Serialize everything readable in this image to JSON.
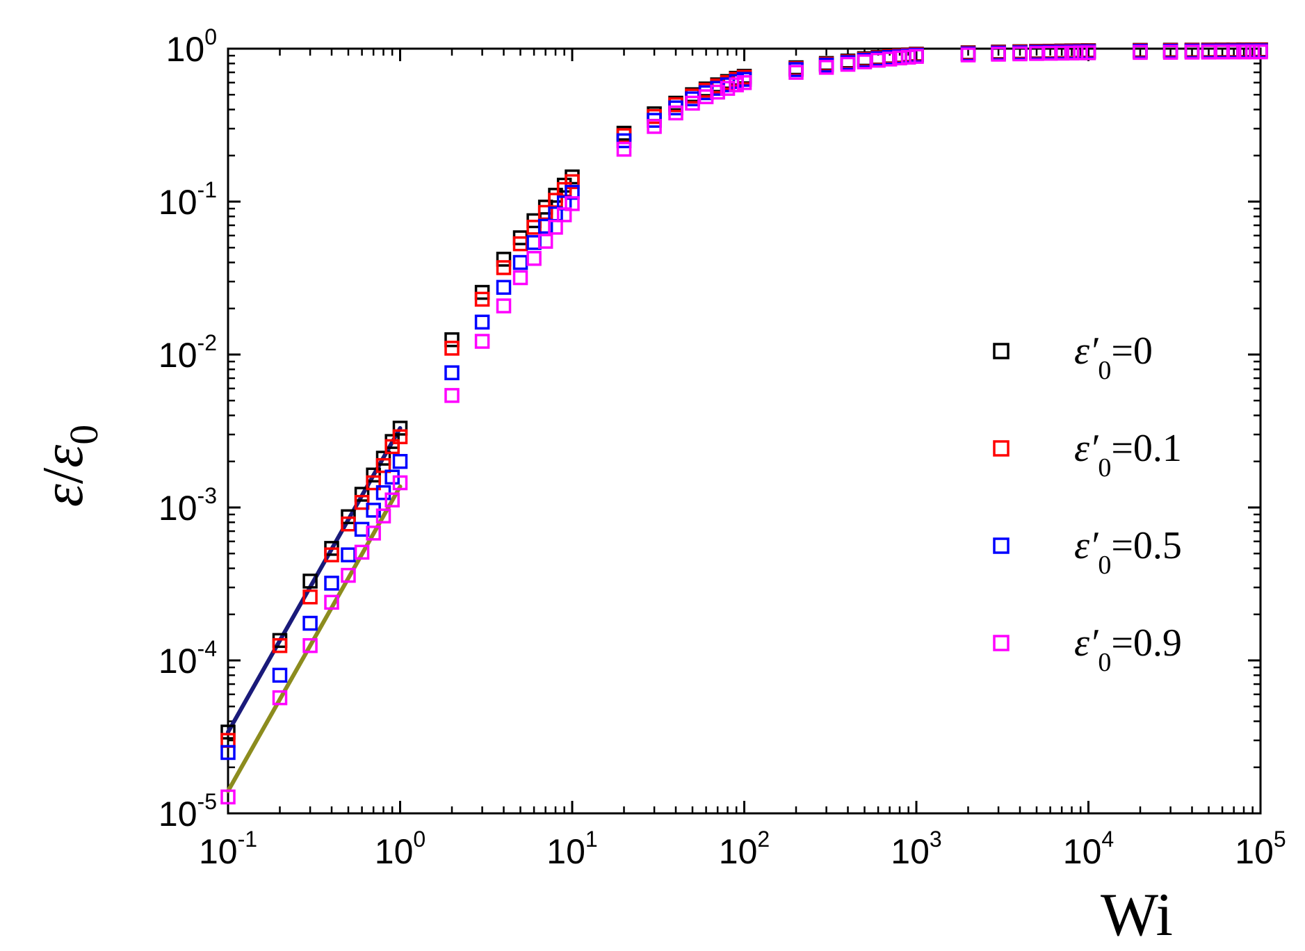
{
  "chart_data": {
    "type": "scatter",
    "title": "",
    "xlabel": "Wi",
    "ylabel": {
      "numerator": "ε",
      "slash": "/",
      "denominator": "ε",
      "denominator_subscript": "0"
    },
    "xscale": "log",
    "yscale": "log",
    "xlim": [
      0.1,
      100000
    ],
    "ylim": [
      1e-05,
      1
    ],
    "x_ticks": [
      {
        "base": "10",
        "exp": "-1",
        "value": 0.1
      },
      {
        "base": "10",
        "exp": "0",
        "value": 1
      },
      {
        "base": "10",
        "exp": "1",
        "value": 10
      },
      {
        "base": "10",
        "exp": "2",
        "value": 100
      },
      {
        "base": "10",
        "exp": "3",
        "value": 1000
      },
      {
        "base": "10",
        "exp": "4",
        "value": 10000
      },
      {
        "base": "10",
        "exp": "5",
        "value": 100000
      }
    ],
    "y_ticks": [
      {
        "base": "10",
        "exp": "-5",
        "value": 1e-05
      },
      {
        "base": "10",
        "exp": "-4",
        "value": 0.0001
      },
      {
        "base": "10",
        "exp": "-3",
        "value": 0.001
      },
      {
        "base": "10",
        "exp": "-2",
        "value": 0.01
      },
      {
        "base": "10",
        "exp": "-1",
        "value": 0.1
      },
      {
        "base": "10",
        "exp": "0",
        "value": 1
      }
    ],
    "legend_position": "right",
    "x": [
      0.1,
      0.2,
      0.3,
      0.4,
      0.5,
      0.6,
      0.7,
      0.8,
      0.9,
      1,
      2,
      3,
      4,
      5,
      6,
      7,
      8,
      9,
      10,
      20,
      30,
      40,
      50,
      60,
      70,
      80,
      90,
      100,
      200,
      300,
      400,
      500,
      600,
      700,
      800,
      900,
      1000,
      2000,
      3000,
      4000,
      5000,
      6000,
      7000,
      8000,
      9000,
      10000,
      20000,
      30000,
      40000,
      50000,
      60000,
      70000,
      80000,
      90000,
      100000
    ],
    "series": [
      {
        "name_symbol": "ε′",
        "name_sub": "0",
        "name_value": "=0",
        "color": "#000000",
        "values": [
          3.4e-05,
          0.000135,
          0.00033,
          0.00054,
          0.00087,
          0.00122,
          0.00163,
          0.0021,
          0.0027,
          0.0033,
          0.0125,
          0.0255,
          0.042,
          0.058,
          0.075,
          0.092,
          0.11,
          0.128,
          0.145,
          0.28,
          0.375,
          0.44,
          0.5,
          0.545,
          0.58,
          0.61,
          0.64,
          0.66,
          0.75,
          0.8,
          0.83,
          0.86,
          0.875,
          0.89,
          0.9,
          0.91,
          0.92,
          0.94,
          0.95,
          0.955,
          0.96,
          0.962,
          0.965,
          0.967,
          0.968,
          0.97,
          0.975,
          0.977,
          0.978,
          0.979,
          0.98,
          0.98,
          0.981,
          0.981,
          0.982
        ]
      },
      {
        "name_symbol": "ε′",
        "name_sub": "0",
        "name_value": "=0.1",
        "color": "#ff0000",
        "values": [
          3e-05,
          0.000125,
          0.00026,
          0.00049,
          0.00078,
          0.00108,
          0.00145,
          0.00188,
          0.0025,
          0.0029,
          0.011,
          0.023,
          0.037,
          0.053,
          0.068,
          0.085,
          0.102,
          0.12,
          0.135,
          0.27,
          0.36,
          0.43,
          0.49,
          0.535,
          0.57,
          0.6,
          0.63,
          0.65,
          0.74,
          0.79,
          0.82,
          0.85,
          0.87,
          0.885,
          0.895,
          0.905,
          0.915,
          0.935,
          0.945,
          0.95,
          0.955,
          0.958,
          0.96,
          0.962,
          0.964,
          0.965,
          0.97,
          0.972,
          0.974,
          0.975,
          0.976,
          0.977,
          0.977,
          0.978,
          0.978
        ]
      },
      {
        "name_symbol": "ε′",
        "name_sub": "0",
        "name_value": "=0.5",
        "color": "#0000ff",
        "values": [
          2.5e-05,
          8e-05,
          0.000175,
          0.00032,
          0.00049,
          0.00072,
          0.00096,
          0.00125,
          0.00158,
          0.002,
          0.0076,
          0.0163,
          0.0275,
          0.04,
          0.054,
          0.069,
          0.083,
          0.098,
          0.115,
          0.25,
          0.34,
          0.41,
          0.47,
          0.515,
          0.55,
          0.58,
          0.61,
          0.63,
          0.73,
          0.78,
          0.81,
          0.84,
          0.86,
          0.875,
          0.885,
          0.895,
          0.905,
          0.925,
          0.935,
          0.94,
          0.945,
          0.948,
          0.95,
          0.952,
          0.954,
          0.955,
          0.96,
          0.962,
          0.964,
          0.965,
          0.966,
          0.967,
          0.967,
          0.968,
          0.968
        ]
      },
      {
        "name_symbol": "ε′",
        "name_sub": "0",
        "name_value": "=0.9",
        "color": "#ff00ff",
        "values": [
          1.28e-05,
          5.7e-05,
          0.000125,
          0.00024,
          0.00036,
          0.00051,
          0.00068,
          0.00088,
          0.00112,
          0.00145,
          0.0054,
          0.0122,
          0.0208,
          0.0318,
          0.0425,
          0.055,
          0.068,
          0.082,
          0.097,
          0.22,
          0.31,
          0.38,
          0.44,
          0.485,
          0.52,
          0.55,
          0.58,
          0.6,
          0.7,
          0.755,
          0.79,
          0.82,
          0.84,
          0.855,
          0.87,
          0.88,
          0.89,
          0.91,
          0.92,
          0.925,
          0.93,
          0.933,
          0.935,
          0.937,
          0.939,
          0.94,
          0.945,
          0.947,
          0.949,
          0.95,
          0.951,
          0.952,
          0.952,
          0.953,
          0.953
        ]
      }
    ],
    "fit_lines": [
      {
        "name": "fit-upper",
        "color": "#1a1a7a",
        "x": [
          0.1,
          1
        ],
        "y": [
          3.4e-05,
          0.0033
        ]
      },
      {
        "name": "fit-lower",
        "color": "#8c8c1e",
        "x": [
          0.1,
          1
        ],
        "y": [
          1.4e-05,
          0.00137
        ]
      }
    ]
  }
}
